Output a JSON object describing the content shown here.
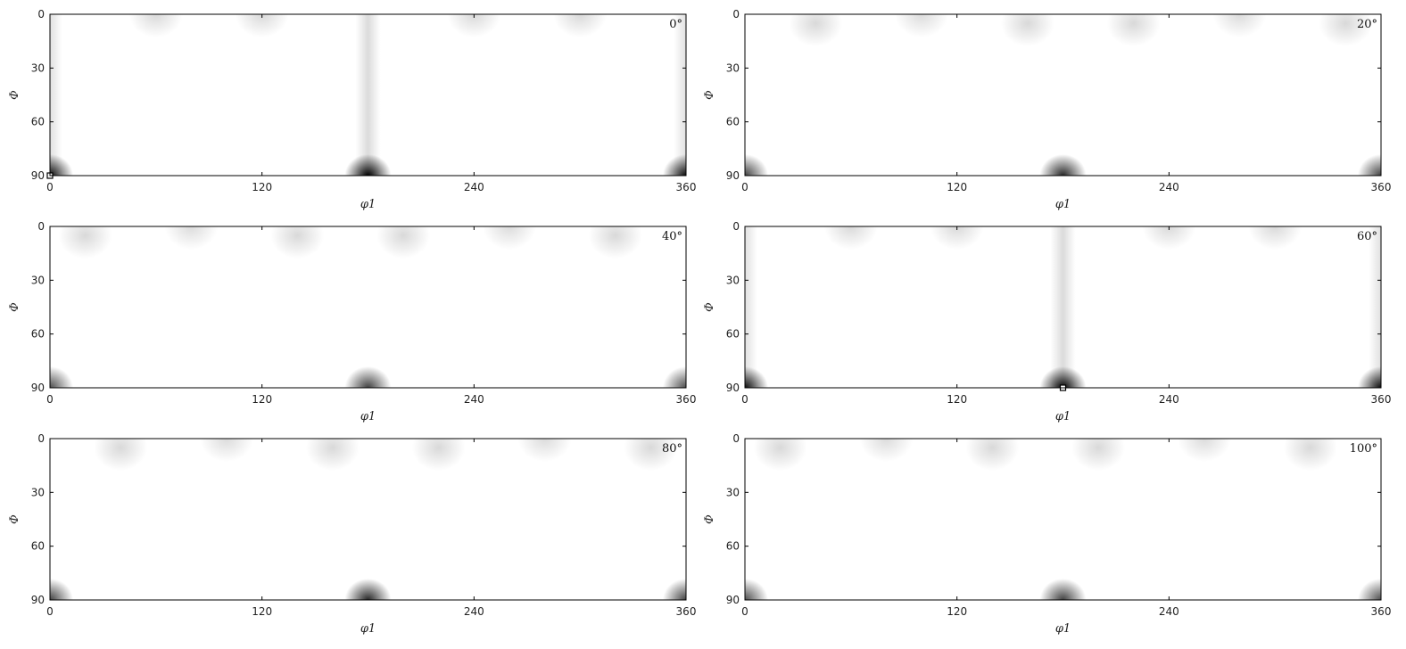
{
  "chart_data": {
    "type": "heatmap",
    "colormap": [
      "#ffffff",
      "#000000"
    ],
    "grid": false,
    "xlabel": "φ1",
    "ylabel": "Φ",
    "xlim": [
      0,
      360
    ],
    "ylim": [
      0,
      90
    ],
    "y_inverted": true,
    "xticks": [
      "0",
      "120",
      "240",
      "360"
    ],
    "yticks": [
      "0",
      "30",
      "60",
      "90"
    ],
    "panels": [
      {
        "label": "0°",
        "hotspots": [
          {
            "x": 0,
            "y": 90,
            "intensity": 0.95
          },
          {
            "x": 180,
            "y": 90,
            "intensity": 1.0
          },
          {
            "x": 360,
            "y": 90,
            "intensity": 0.95
          },
          {
            "x": 60,
            "y": 0,
            "intensity": 0.15
          },
          {
            "x": 120,
            "y": 0,
            "intensity": 0.15
          },
          {
            "x": 240,
            "y": 0,
            "intensity": 0.15
          },
          {
            "x": 300,
            "y": 0,
            "intensity": 0.15
          }
        ],
        "streaks": [
          {
            "x": 0,
            "intensity": 0.12
          },
          {
            "x": 180,
            "intensity": 0.14
          },
          {
            "x": 360,
            "intensity": 0.12
          }
        ],
        "markers": [
          {
            "x": 0,
            "y": 90
          }
        ]
      },
      {
        "label": "20°",
        "hotspots": [
          {
            "x": 0,
            "y": 90,
            "intensity": 0.75
          },
          {
            "x": 180,
            "y": 90,
            "intensity": 0.85
          },
          {
            "x": 360,
            "y": 90,
            "intensity": 0.75
          },
          {
            "x": 40,
            "y": 5,
            "intensity": 0.15
          },
          {
            "x": 100,
            "y": 0,
            "intensity": 0.14
          },
          {
            "x": 160,
            "y": 5,
            "intensity": 0.15
          },
          {
            "x": 220,
            "y": 5,
            "intensity": 0.15
          },
          {
            "x": 280,
            "y": 0,
            "intensity": 0.14
          },
          {
            "x": 340,
            "y": 5,
            "intensity": 0.15
          }
        ],
        "streaks": [],
        "markers": []
      },
      {
        "label": "40°",
        "hotspots": [
          {
            "x": 0,
            "y": 90,
            "intensity": 0.7
          },
          {
            "x": 180,
            "y": 90,
            "intensity": 0.75
          },
          {
            "x": 360,
            "y": 90,
            "intensity": 0.7
          },
          {
            "x": 20,
            "y": 5,
            "intensity": 0.15
          },
          {
            "x": 80,
            "y": 0,
            "intensity": 0.14
          },
          {
            "x": 140,
            "y": 5,
            "intensity": 0.15
          },
          {
            "x": 200,
            "y": 5,
            "intensity": 0.15
          },
          {
            "x": 260,
            "y": 0,
            "intensity": 0.14
          },
          {
            "x": 320,
            "y": 5,
            "intensity": 0.15
          }
        ],
        "streaks": [],
        "markers": []
      },
      {
        "label": "60°",
        "hotspots": [
          {
            "x": 0,
            "y": 90,
            "intensity": 0.95
          },
          {
            "x": 180,
            "y": 90,
            "intensity": 1.0
          },
          {
            "x": 360,
            "y": 90,
            "intensity": 0.95
          },
          {
            "x": 60,
            "y": 0,
            "intensity": 0.15
          },
          {
            "x": 120,
            "y": 0,
            "intensity": 0.15
          },
          {
            "x": 240,
            "y": 0,
            "intensity": 0.15
          },
          {
            "x": 300,
            "y": 0,
            "intensity": 0.15
          }
        ],
        "streaks": [
          {
            "x": 0,
            "intensity": 0.12
          },
          {
            "x": 180,
            "intensity": 0.14
          },
          {
            "x": 360,
            "intensity": 0.12
          }
        ],
        "markers": [
          {
            "x": 180,
            "y": 90
          }
        ]
      },
      {
        "label": "80°",
        "hotspots": [
          {
            "x": 0,
            "y": 90,
            "intensity": 0.75
          },
          {
            "x": 180,
            "y": 90,
            "intensity": 0.85
          },
          {
            "x": 360,
            "y": 90,
            "intensity": 0.75
          },
          {
            "x": 40,
            "y": 5,
            "intensity": 0.15
          },
          {
            "x": 100,
            "y": 0,
            "intensity": 0.14
          },
          {
            "x": 160,
            "y": 5,
            "intensity": 0.15
          },
          {
            "x": 220,
            "y": 5,
            "intensity": 0.15
          },
          {
            "x": 280,
            "y": 0,
            "intensity": 0.14
          },
          {
            "x": 340,
            "y": 5,
            "intensity": 0.15
          }
        ],
        "streaks": [],
        "markers": []
      },
      {
        "label": "100°",
        "hotspots": [
          {
            "x": 0,
            "y": 90,
            "intensity": 0.7
          },
          {
            "x": 180,
            "y": 90,
            "intensity": 0.75
          },
          {
            "x": 360,
            "y": 90,
            "intensity": 0.7
          },
          {
            "x": 20,
            "y": 5,
            "intensity": 0.15
          },
          {
            "x": 80,
            "y": 0,
            "intensity": 0.14
          },
          {
            "x": 140,
            "y": 5,
            "intensity": 0.15
          },
          {
            "x": 200,
            "y": 5,
            "intensity": 0.15
          },
          {
            "x": 260,
            "y": 0,
            "intensity": 0.14
          },
          {
            "x": 320,
            "y": 5,
            "intensity": 0.15
          }
        ],
        "streaks": [],
        "markers": []
      }
    ]
  }
}
